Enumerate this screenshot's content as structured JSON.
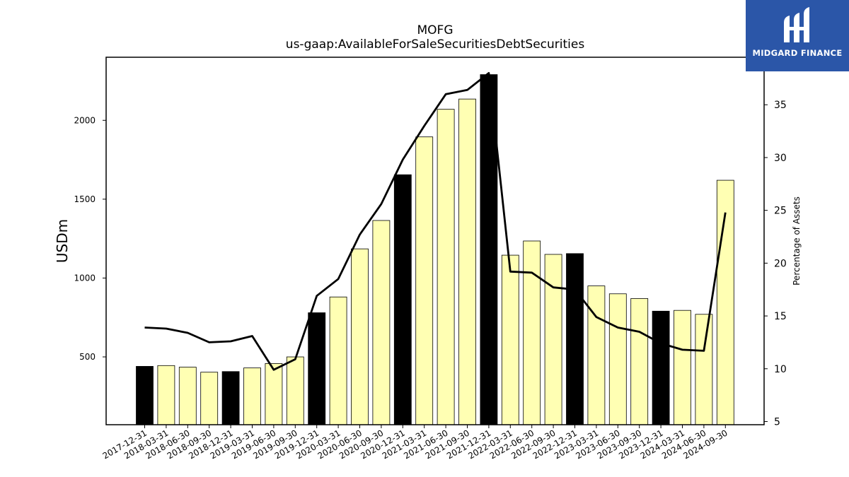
{
  "colors": {
    "bar_highlight": "#000000",
    "bar_default": "#ffffb3",
    "line": "#000000",
    "logo_bg": "#2b56a8"
  },
  "logo": {
    "text": "MIDGARD FINANCE",
    "icon": "midgard-logo-icon"
  },
  "chart_data": {
    "type": "bar",
    "title": "MOFG",
    "subtitle": "us-gaap:AvailableForSaleSecuritiesDebtSecurities",
    "ylabel": "USDm",
    "y2label": "Percentage of Assets",
    "ylim": [
      70,
      2400
    ],
    "y2lim": [
      4.7,
      39.5
    ],
    "yticks": [
      500,
      1000,
      1500,
      2000
    ],
    "y2ticks": [
      5,
      10,
      15,
      20,
      25,
      30,
      35
    ],
    "grid": false,
    "categories": [
      "2017-12-31",
      "2018-03-31",
      "2018-06-30",
      "2018-09-30",
      "2018-12-31",
      "2019-03-31",
      "2019-06-30",
      "2019-09-30",
      "2019-12-31",
      "2020-03-31",
      "2020-06-30",
      "2020-09-30",
      "2020-12-31",
      "2021-03-31",
      "2021-06-30",
      "2021-09-30",
      "2021-12-31",
      "2022-03-31",
      "2022-06-30",
      "2022-09-30",
      "2022-12-31",
      "2023-03-31",
      "2023-06-30",
      "2023-09-30",
      "2023-12-31",
      "2024-03-31",
      "2024-06-30",
      "2024-09-30"
    ],
    "highlight": [
      true,
      false,
      false,
      false,
      true,
      false,
      false,
      false,
      true,
      false,
      false,
      false,
      true,
      false,
      false,
      false,
      true,
      false,
      false,
      false,
      true,
      false,
      false,
      false,
      true,
      false,
      false,
      false
    ],
    "series": [
      {
        "type": "bar",
        "axis": "left",
        "values": [
          440,
          445,
          435,
          403,
          407,
          430,
          458,
          500,
          780,
          880,
          1185,
          1365,
          1655,
          1895,
          2070,
          2135,
          2290,
          1145,
          1235,
          1150,
          1155,
          950,
          900,
          870,
          790,
          795,
          770,
          1620
        ]
      },
      {
        "type": "line",
        "axis": "right",
        "values": [
          13.9,
          13.8,
          13.4,
          12.5,
          12.6,
          13.1,
          9.9,
          10.9,
          16.9,
          18.5,
          22.7,
          25.6,
          29.8,
          33.0,
          36.0,
          36.4,
          38.0,
          19.2,
          19.1,
          17.7,
          17.5,
          14.9,
          13.9,
          13.5,
          12.4,
          11.8,
          11.7,
          24.8
        ]
      }
    ]
  }
}
